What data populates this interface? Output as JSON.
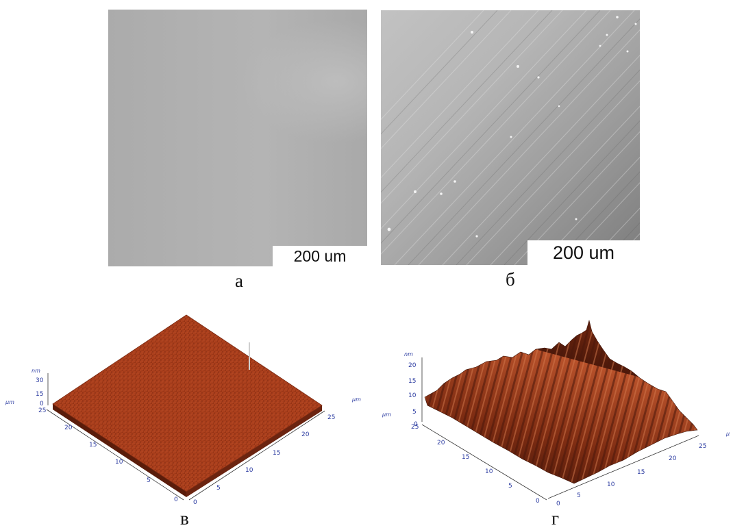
{
  "panels": {
    "a": {
      "caption": "а",
      "scale_label": "200 um"
    },
    "b": {
      "caption": "б",
      "scale_label": "200 um"
    },
    "v": {
      "caption": "в",
      "z_unit": "nm",
      "z_ticks": [
        "30",
        "15",
        "0"
      ],
      "left_unit": "µm",
      "right_unit": "µm",
      "left_axis_ticks": [
        "25",
        "20",
        "15",
        "10",
        "5",
        "0"
      ],
      "right_axis_ticks": [
        "25",
        "20",
        "15",
        "10",
        "5",
        "0"
      ]
    },
    "g": {
      "caption": "г",
      "z_unit": "nm",
      "z_ticks": [
        "20",
        "15",
        "10",
        "5",
        "0"
      ],
      "left_unit": "µm",
      "right_unit": "µ",
      "left_axis_ticks": [
        "25",
        "20",
        "15",
        "10",
        "5",
        "0"
      ],
      "right_axis_ticks": [
        "25",
        "20",
        "15",
        "10",
        "5",
        "0"
      ]
    }
  },
  "colors": {
    "afm_surface": "#b0431f",
    "afm_dark": "#5a1c0a",
    "tick_color": "#2a3aa0"
  }
}
